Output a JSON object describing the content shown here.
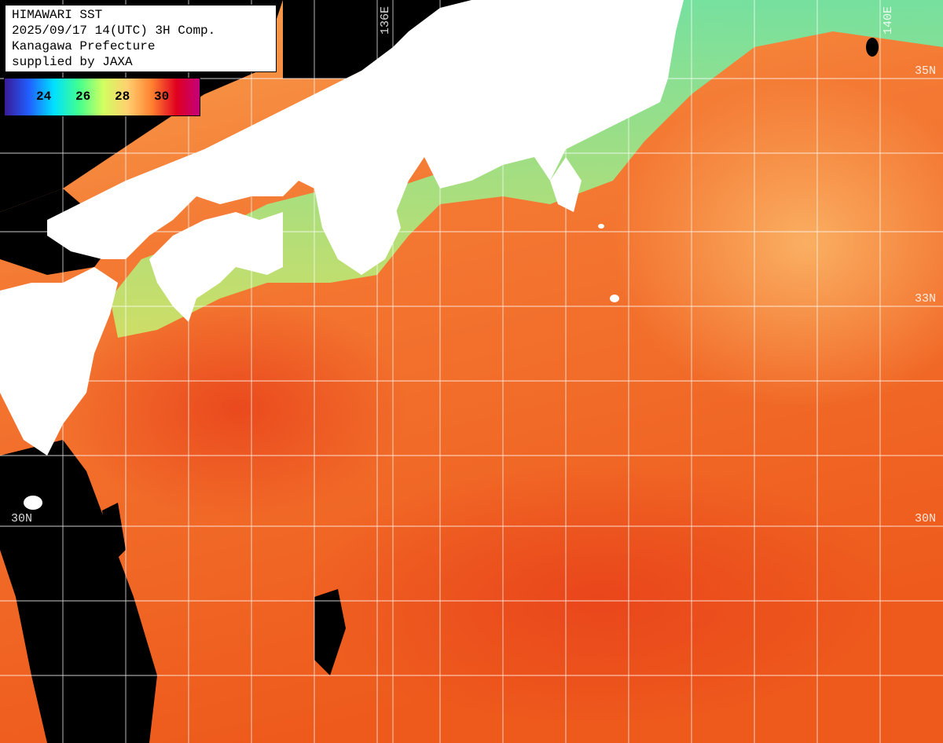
{
  "header": {
    "line1": "HIMAWARI SST",
    "line2": "2025/09/17 14(UTC) 3H Comp.",
    "line3": "Kanagawa Prefecture",
    "line4": "supplied by JAXA"
  },
  "legend": {
    "ticks": [
      "24",
      "26",
      "28",
      "30"
    ],
    "colors": [
      "#3a1a9a",
      "#2060ff",
      "#00e0ff",
      "#40ff90",
      "#d0ff60",
      "#ffd070",
      "#ff8030",
      "#e00020",
      "#c00080"
    ]
  },
  "grid_labels": {
    "lon_136": "136E",
    "lon_140": "140E",
    "lat_35_right": "35N",
    "lat_33_right": "33N",
    "lat_30_left": "30N",
    "lat_30_right": "30N"
  },
  "colors": {
    "land": "#ffffff",
    "no_data": "#000000",
    "gridline": "#ffffff",
    "sea_warm": "#f06020",
    "sea_mild": "#f8a050",
    "sea_cool": "#70f0a0"
  }
}
